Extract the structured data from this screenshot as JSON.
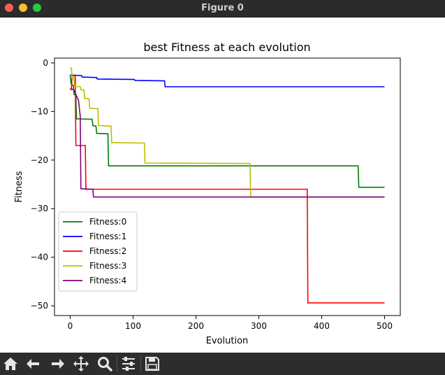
{
  "window": {
    "title": "Figure 0"
  },
  "toolbar": {
    "buttons": [
      {
        "name": "home-button",
        "icon": "home-icon"
      },
      {
        "name": "back-button",
        "icon": "arrow-left-icon"
      },
      {
        "name": "forward-button",
        "icon": "arrow-right-icon"
      },
      {
        "name": "pan-button",
        "icon": "move-icon"
      },
      {
        "name": "zoom-button",
        "icon": "magnifier-icon"
      },
      {
        "name": "configure-subplots-button",
        "icon": "sliders-icon"
      },
      {
        "name": "save-button",
        "icon": "floppy-disk-icon"
      }
    ]
  },
  "chart_data": {
    "type": "line",
    "title": "best Fitness at each evolution",
    "xlabel": "Evolution",
    "ylabel": "Fitness",
    "xlim": [
      -25,
      525
    ],
    "ylim": [
      -52,
      1
    ],
    "x_ticks": [
      0,
      100,
      200,
      300,
      400,
      500
    ],
    "y_ticks": [
      0,
      -10,
      -20,
      -30,
      -40,
      -50
    ],
    "x_tick_labels": [
      "0",
      "100",
      "200",
      "300",
      "400",
      "500"
    ],
    "y_tick_labels": [
      "0",
      "−10",
      "−20",
      "−30",
      "−40",
      "−50"
    ],
    "grid": false,
    "legend_position": "lower-left",
    "series": [
      {
        "name": "Fitness:0",
        "color": "#008000",
        "x": [
          0,
          1,
          2,
          5,
          6,
          9,
          10,
          35,
          36,
          41,
          42,
          60,
          61,
          458,
          459,
          500
        ],
        "y": [
          -2.5,
          -4.0,
          -4.5,
          -4.6,
          -6.5,
          -6.6,
          -11.5,
          -11.6,
          -12.9,
          -13.0,
          -14.5,
          -14.6,
          -21.2,
          -21.2,
          -25.6,
          -25.6
        ]
      },
      {
        "name": "Fitness:1",
        "color": "#0000ff",
        "x": [
          0,
          18,
          19,
          42,
          43,
          102,
          103,
          150,
          151,
          500
        ],
        "y": [
          -2.5,
          -2.6,
          -2.9,
          -3.0,
          -3.3,
          -3.4,
          -3.6,
          -3.7,
          -4.9,
          -4.9
        ]
      },
      {
        "name": "Fitness:2",
        "color": "#ff0000",
        "x": [
          0,
          2,
          3,
          8,
          9,
          24,
          25,
          377,
          378,
          500
        ],
        "y": [
          -5.3,
          -5.2,
          -2.6,
          -2.7,
          -17.0,
          -17.0,
          -26.0,
          -26.0,
          -49.4,
          -49.4
        ]
      },
      {
        "name": "Fitness:3",
        "color": "#bfbf00",
        "x": [
          0,
          2,
          3,
          6,
          7,
          16,
          17,
          22,
          23,
          30,
          31,
          44,
          45,
          65,
          66,
          118,
          119,
          286,
          287,
          500
        ],
        "y": [
          -1.0,
          -1.1,
          -3.0,
          -3.1,
          -4.8,
          -4.9,
          -5.5,
          -5.6,
          -7.3,
          -7.4,
          -9.3,
          -9.4,
          -12.9,
          -13.0,
          -16.4,
          -16.5,
          -20.6,
          -20.7,
          -27.6,
          -27.6
        ]
      },
      {
        "name": "Fitness:4",
        "color": "#800080",
        "x": [
          0,
          5,
          6,
          12,
          13,
          16,
          17,
          36,
          37,
          500
        ],
        "y": [
          -5.5,
          -5.4,
          -5.6,
          -7.4,
          -7.5,
          -11.0,
          -25.9,
          -26.0,
          -27.6,
          -27.6
        ]
      }
    ]
  }
}
